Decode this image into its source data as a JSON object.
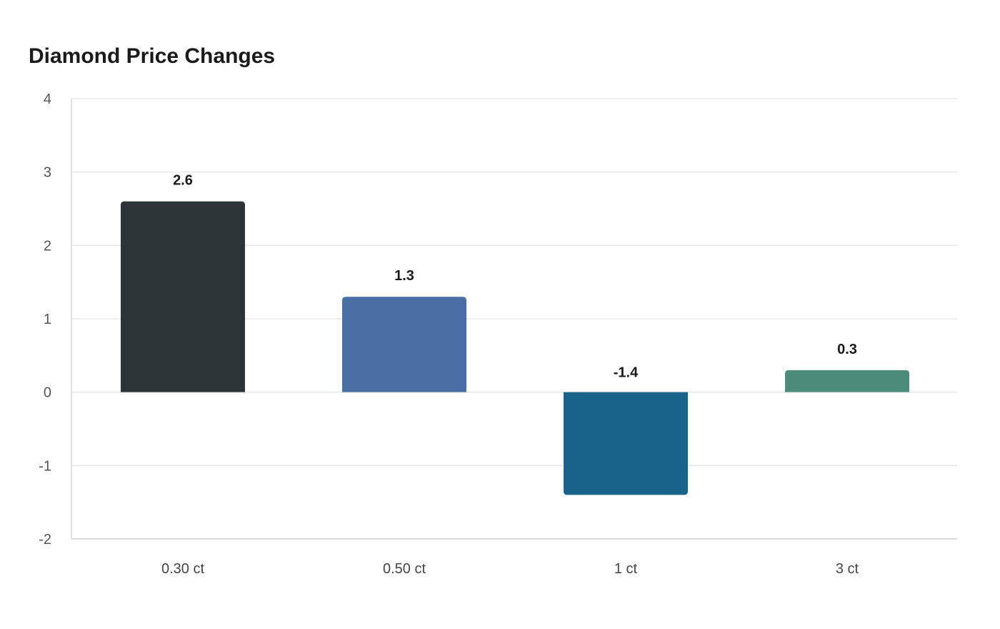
{
  "chart_data": {
    "type": "bar",
    "title": "Diamond Price Changes",
    "xlabel": "",
    "ylabel": "",
    "categories": [
      "0.30 ct",
      "0.50 ct",
      "1 ct",
      "3 ct"
    ],
    "values": [
      2.6,
      1.3,
      -1.4,
      0.3
    ],
    "value_labels": [
      "2.6",
      "1.3",
      "-1.4",
      "0.3"
    ],
    "colors": [
      "#2e3538",
      "#4a6fa5",
      "#19638a",
      "#4e8c7a"
    ],
    "ylim": [
      -2,
      4
    ],
    "yticks": [
      4,
      3,
      2,
      1,
      0,
      -1,
      -2
    ],
    "ytick_labels": [
      "4",
      "3",
      "2",
      "1",
      "0",
      "-1",
      "-2"
    ],
    "grid": true,
    "legend": "none"
  }
}
